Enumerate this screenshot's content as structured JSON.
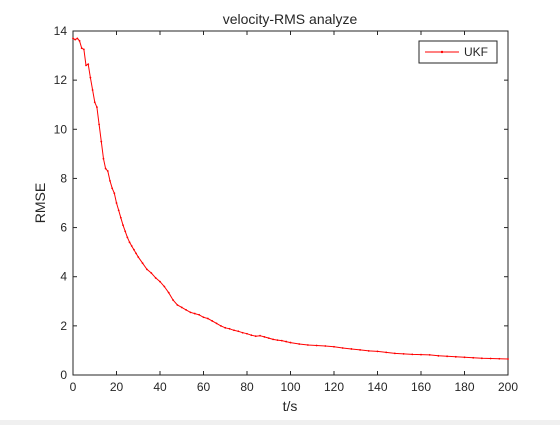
{
  "chart_data": {
    "type": "line",
    "title": "velocity-RMS analyze",
    "xlabel": "t/s",
    "ylabel": "RMSE",
    "xlim": [
      0,
      200
    ],
    "ylim": [
      0,
      14
    ],
    "xticks": [
      0,
      20,
      40,
      60,
      80,
      100,
      120,
      140,
      160,
      180,
      200
    ],
    "yticks": [
      0,
      2,
      4,
      6,
      8,
      10,
      12,
      14
    ],
    "grid": false,
    "legend_position": "top-right",
    "series": [
      {
        "name": "UKF",
        "color": "#ff0000",
        "marker": "point",
        "points": [
          [
            0,
            13.7
          ],
          [
            1,
            13.65
          ],
          [
            2,
            13.7
          ],
          [
            3,
            13.6
          ],
          [
            4,
            13.3
          ],
          [
            5,
            13.25
          ],
          [
            6,
            12.6
          ],
          [
            7,
            12.65
          ],
          [
            8,
            12.1
          ],
          [
            9,
            11.6
          ],
          [
            10,
            11.1
          ],
          [
            11,
            10.9
          ],
          [
            12,
            10.2
          ],
          [
            13,
            9.5
          ],
          [
            14,
            8.8
          ],
          [
            15,
            8.4
          ],
          [
            16,
            8.3
          ],
          [
            17,
            7.9
          ],
          [
            18,
            7.6
          ],
          [
            19,
            7.4
          ],
          [
            20,
            7.0
          ],
          [
            21,
            6.7
          ],
          [
            22,
            6.4
          ],
          [
            23,
            6.1
          ],
          [
            24,
            5.85
          ],
          [
            25,
            5.6
          ],
          [
            26,
            5.4
          ],
          [
            27,
            5.25
          ],
          [
            28,
            5.1
          ],
          [
            29,
            4.95
          ],
          [
            30,
            4.8
          ],
          [
            32,
            4.55
          ],
          [
            34,
            4.3
          ],
          [
            36,
            4.15
          ],
          [
            38,
            3.95
          ],
          [
            40,
            3.8
          ],
          [
            42,
            3.6
          ],
          [
            44,
            3.35
          ],
          [
            46,
            3.05
          ],
          [
            48,
            2.85
          ],
          [
            50,
            2.75
          ],
          [
            52,
            2.65
          ],
          [
            54,
            2.55
          ],
          [
            56,
            2.5
          ],
          [
            58,
            2.45
          ],
          [
            60,
            2.35
          ],
          [
            62,
            2.3
          ],
          [
            64,
            2.2
          ],
          [
            66,
            2.1
          ],
          [
            68,
            2.0
          ],
          [
            70,
            1.92
          ],
          [
            72,
            1.88
          ],
          [
            74,
            1.82
          ],
          [
            76,
            1.78
          ],
          [
            78,
            1.72
          ],
          [
            80,
            1.68
          ],
          [
            82,
            1.62
          ],
          [
            84,
            1.58
          ],
          [
            86,
            1.6
          ],
          [
            88,
            1.55
          ],
          [
            90,
            1.5
          ],
          [
            92,
            1.45
          ],
          [
            94,
            1.42
          ],
          [
            96,
            1.4
          ],
          [
            98,
            1.36
          ],
          [
            100,
            1.32
          ],
          [
            104,
            1.26
          ],
          [
            108,
            1.22
          ],
          [
            112,
            1.2
          ],
          [
            116,
            1.18
          ],
          [
            120,
            1.15
          ],
          [
            124,
            1.1
          ],
          [
            128,
            1.06
          ],
          [
            132,
            1.02
          ],
          [
            136,
            0.98
          ],
          [
            140,
            0.96
          ],
          [
            144,
            0.92
          ],
          [
            148,
            0.88
          ],
          [
            152,
            0.86
          ],
          [
            156,
            0.84
          ],
          [
            160,
            0.83
          ],
          [
            164,
            0.82
          ],
          [
            168,
            0.78
          ],
          [
            172,
            0.76
          ],
          [
            176,
            0.74
          ],
          [
            180,
            0.72
          ],
          [
            184,
            0.7
          ],
          [
            188,
            0.68
          ],
          [
            192,
            0.67
          ],
          [
            196,
            0.66
          ],
          [
            200,
            0.65
          ]
        ]
      }
    ]
  }
}
